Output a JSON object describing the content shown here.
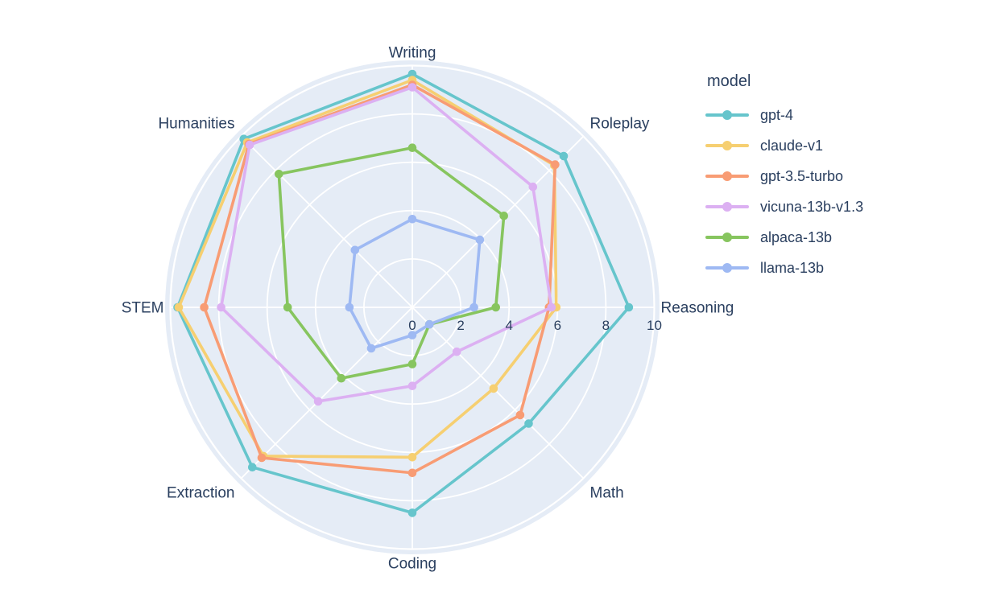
{
  "chart_data": {
    "type": "radar",
    "categories": [
      "Writing",
      "Roleplay",
      "Reasoning",
      "Math",
      "Coding",
      "Extraction",
      "STEM",
      "Humanities"
    ],
    "radial_axis": {
      "range": [
        0,
        10
      ],
      "dtick": 2,
      "tick_labels": [
        "0",
        "2",
        "4",
        "6",
        "8",
        "10"
      ]
    },
    "legend": {
      "title": "model",
      "position": "right"
    },
    "series": [
      {
        "name": "gpt-4",
        "color": "#66C5CC",
        "values": [
          9.65,
          8.85,
          8.95,
          6.8,
          8.5,
          9.35,
          9.7,
          9.85
        ]
      },
      {
        "name": "claude-v1",
        "color": "#F6CF71",
        "values": [
          9.4,
          8.3,
          5.95,
          4.75,
          6.2,
          8.7,
          9.65,
          9.65
        ]
      },
      {
        "name": "gpt-3.5-turbo",
        "color": "#F89C74",
        "values": [
          9.2,
          8.35,
          5.65,
          6.3,
          6.85,
          8.8,
          8.6,
          9.55
        ]
      },
      {
        "name": "vicuna-13b-v1.3",
        "color": "#DCB0F2",
        "values": [
          9.1,
          7.05,
          5.75,
          2.6,
          3.25,
          5.5,
          7.9,
          9.5
        ]
      },
      {
        "name": "alpaca-13b",
        "color": "#87C55F",
        "values": [
          6.6,
          5.35,
          3.45,
          1.0,
          2.35,
          4.15,
          5.15,
          7.8
        ]
      },
      {
        "name": "llama-13b",
        "color": "#9EB9F3",
        "values": [
          3.65,
          3.95,
          2.55,
          1.0,
          1.15,
          2.4,
          2.6,
          3.35
        ]
      }
    ],
    "style": {
      "panel_bg": "#E5ECF6",
      "grid_color": "#FFFFFF",
      "text_color": "#2A3F5F",
      "page_bg": "#FFFFFF"
    },
    "grid": true
  }
}
